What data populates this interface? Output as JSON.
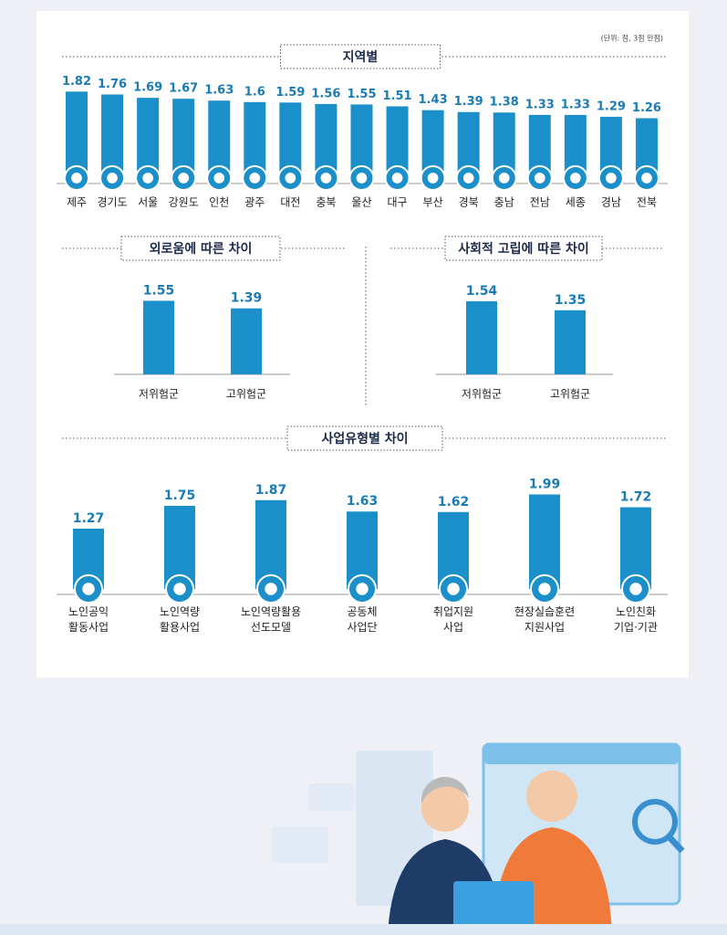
{
  "chart_data": [
    {
      "type": "bar",
      "title": "지역별",
      "note": "(단위: 점, 3점 만점)",
      "color": "#1a8fc9",
      "categories": [
        "제주",
        "경기도",
        "서울",
        "강원도",
        "인천",
        "광주",
        "대전",
        "충북",
        "울산",
        "대구",
        "부산",
        "경북",
        "충남",
        "전남",
        "세종",
        "경남",
        "전북"
      ],
      "values": [
        1.82,
        1.76,
        1.69,
        1.67,
        1.63,
        1.6,
        1.59,
        1.56,
        1.55,
        1.51,
        1.43,
        1.39,
        1.38,
        1.33,
        1.33,
        1.29,
        1.26
      ]
    },
    {
      "type": "bar",
      "title": "외로움에 따른 차이",
      "color": "#1a8fc9",
      "categories": [
        "저위험군",
        "고위험군"
      ],
      "values": [
        1.55,
        1.39
      ]
    },
    {
      "type": "bar",
      "title": "사회적 고립에 따른 차이",
      "color": "#1a8fc9",
      "categories": [
        "저위험군",
        "고위험군"
      ],
      "values": [
        1.54,
        1.35
      ]
    },
    {
      "type": "bar",
      "title": "사업유형별 차이",
      "color": "#1a8fc9",
      "categories": [
        "노인공익\n활동사업",
        "노인역량\n활용사업",
        "노인역량활용\n선도모델",
        "공동체\n사업단",
        "취업지원\n사업",
        "현장실습훈련\n지원사업",
        "노인친화\n기업·기관"
      ],
      "values": [
        1.27,
        1.75,
        1.87,
        1.63,
        1.62,
        1.99,
        1.72
      ]
    }
  ]
}
